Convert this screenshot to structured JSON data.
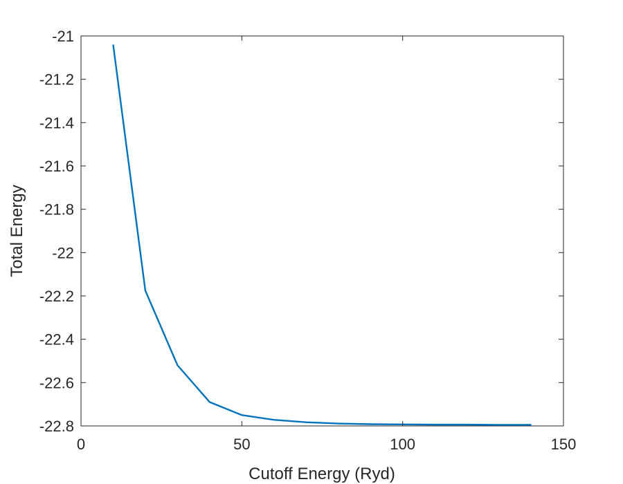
{
  "chart_data": {
    "type": "line",
    "title": "",
    "xlabel": "Cutoff Energy (Ryd)",
    "ylabel": "Total Energy",
    "xlim": [
      0,
      150
    ],
    "ylim": [
      -22.8,
      -21
    ],
    "xticks": [
      0,
      50,
      100,
      150
    ],
    "xtick_labels": [
      "0",
      "50",
      "100",
      "150"
    ],
    "yticks": [
      -21,
      -21.2,
      -21.4,
      -21.6,
      -21.8,
      -22,
      -22.2,
      -22.4,
      -22.6,
      -22.8
    ],
    "ytick_labels": [
      "-21",
      "-21.2",
      "-21.4",
      "-21.6",
      "-21.8",
      "-22",
      "-22.2",
      "-22.4",
      "-22.6",
      "-22.8"
    ],
    "grid": false,
    "legend": false,
    "series": [
      {
        "color": "#0072bd",
        "x": [
          10,
          20,
          30,
          40,
          50,
          60,
          70,
          80,
          90,
          100,
          110,
          120,
          130,
          140
        ],
        "y": [
          -21.04,
          -22.175,
          -22.52,
          -22.69,
          -22.75,
          -22.772,
          -22.783,
          -22.789,
          -22.792,
          -22.793,
          -22.794,
          -22.794,
          -22.795,
          -22.795
        ]
      }
    ]
  }
}
